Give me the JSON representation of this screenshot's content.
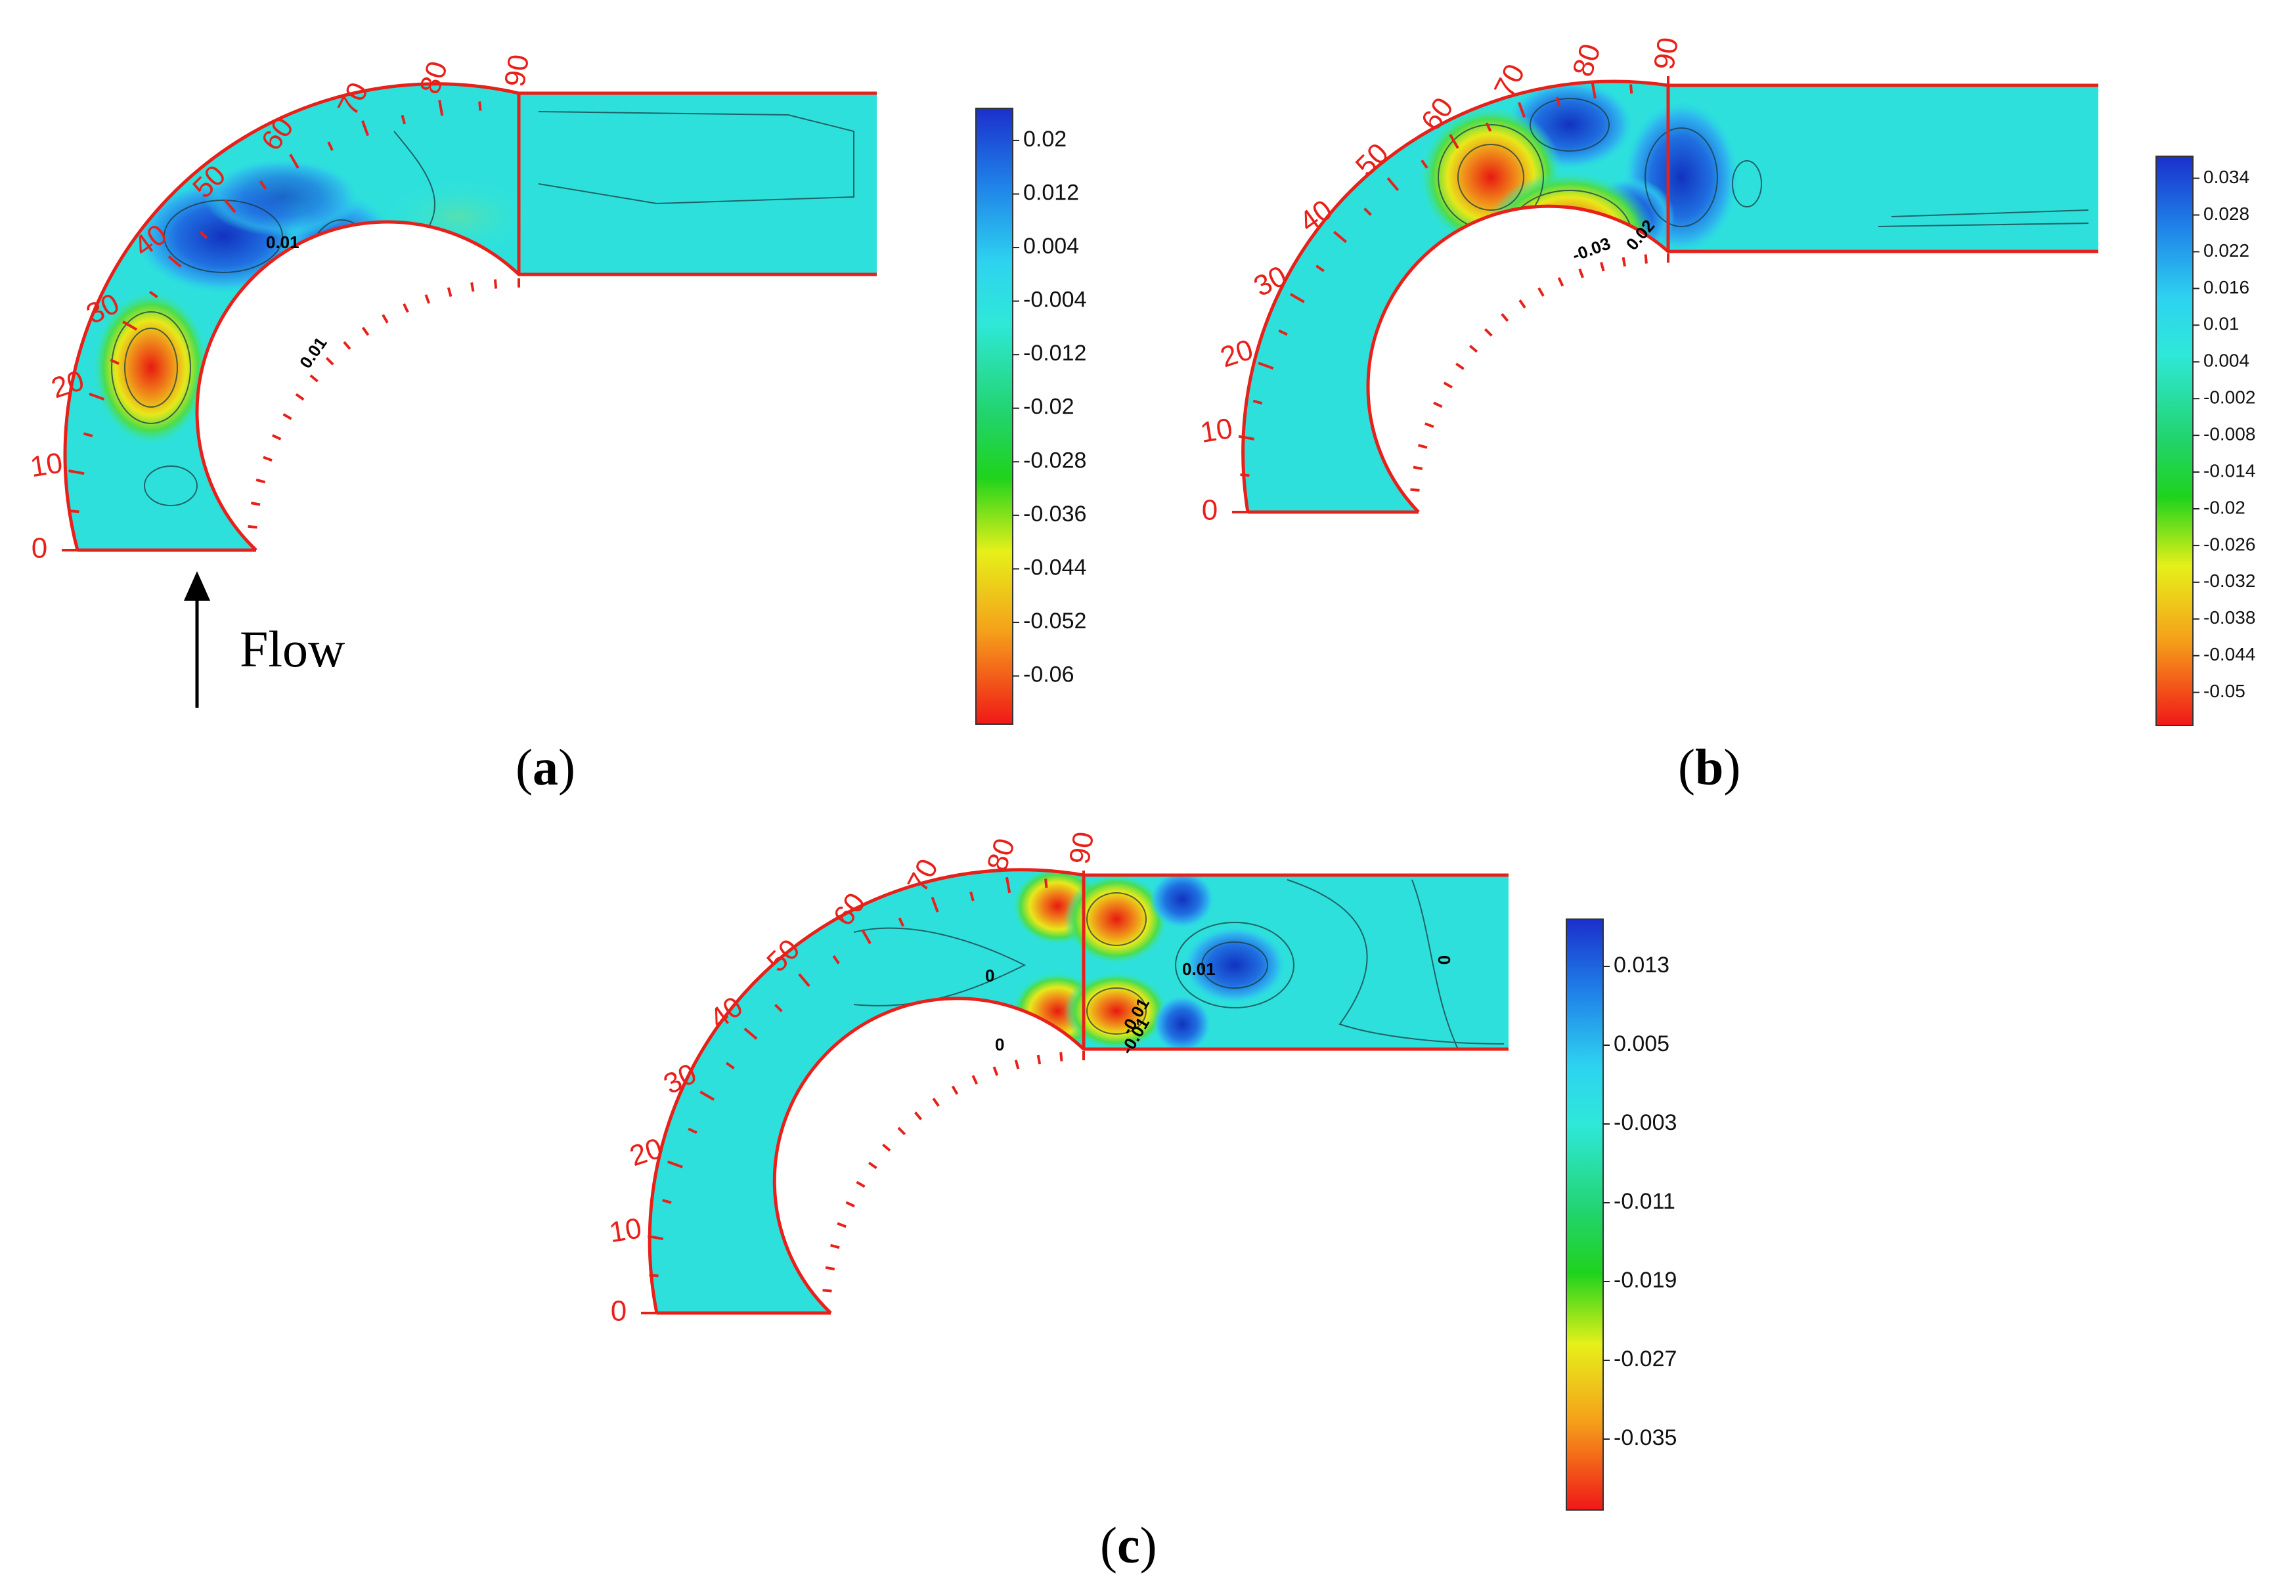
{
  "panels": [
    {
      "id": "a",
      "label_open": "(",
      "label_letter": "a",
      "label_close": ")",
      "angle_ticks": [
        "0",
        "10",
        "20",
        "30",
        "40",
        "50",
        "60",
        "70",
        "80",
        "90"
      ],
      "colorbar": [
        "0.02",
        "0.012",
        "0.004",
        "-0.004",
        "-0.012",
        "-0.02",
        "-0.028",
        "-0.036",
        "-0.044",
        "-0.052",
        "-0.06"
      ],
      "contour_labels": [
        "0.01",
        "0.01"
      ]
    },
    {
      "id": "b",
      "label_open": "(",
      "label_letter": "b",
      "label_close": ")",
      "angle_ticks": [
        "0",
        "10",
        "20",
        "30",
        "40",
        "50",
        "60",
        "70",
        "80",
        "90"
      ],
      "colorbar": [
        "0.034",
        "0.028",
        "0.022",
        "0.016",
        "0.01",
        "0.004",
        "-0.002",
        "-0.008",
        "-0.014",
        "-0.02",
        "-0.026",
        "-0.032",
        "-0.038",
        "-0.044",
        "-0.05"
      ],
      "contour_labels": [
        "-0.03",
        "0.02"
      ]
    },
    {
      "id": "c",
      "label_open": "(",
      "label_letter": "c",
      "label_close": ")",
      "angle_ticks": [
        "0",
        "10",
        "20",
        "30",
        "40",
        "50",
        "60",
        "70",
        "80",
        "90"
      ],
      "colorbar": [
        "0.013",
        "0.005",
        "-0.003",
        "-0.011",
        "-0.019",
        "-0.027",
        "-0.035"
      ],
      "contour_labels": [
        "0",
        "0",
        "0.01",
        "0",
        "-0.01",
        "-0.01"
      ]
    }
  ],
  "flow_label": "Flow",
  "colors": {
    "channel_outline": "#e8201a",
    "field_base": "#27e6e0",
    "high": "#1540c8",
    "low": "#e81a10"
  }
}
